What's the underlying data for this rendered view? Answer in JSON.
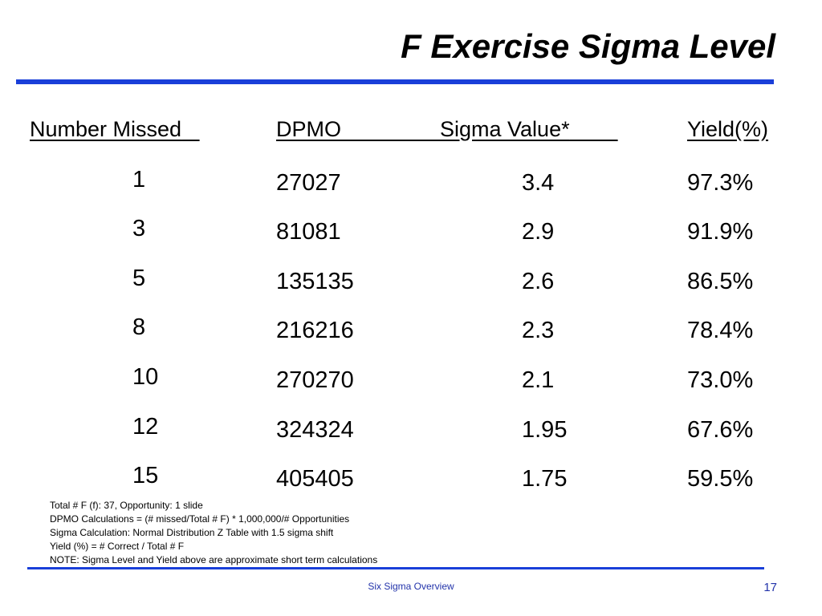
{
  "title": "F Exercise Sigma Level",
  "table": {
    "headers": {
      "number_missed": "Number Missed",
      "dpmo": "DPMO",
      "sigma_value": "Sigma Value*",
      "yield": "Yield(%)"
    },
    "rows": [
      {
        "missed": "1",
        "dpmo": "27027",
        "sigma": "3.4",
        "yield": "97.3%"
      },
      {
        "missed": "3",
        "dpmo": "81081",
        "sigma": "2.9",
        "yield": "91.9%"
      },
      {
        "missed": "5",
        "dpmo": "135135",
        "sigma": "2.6",
        "yield": "86.5%"
      },
      {
        "missed": "8",
        "dpmo": "216216",
        "sigma": "2.3",
        "yield": "78.4%"
      },
      {
        "missed": "10",
        "dpmo": "270270",
        "sigma": "2.1",
        "yield": "73.0%"
      },
      {
        "missed": "12",
        "dpmo": "324324",
        "sigma": "1.95",
        "yield": "67.6%"
      },
      {
        "missed": "15",
        "dpmo": "405405",
        "sigma": "1.75",
        "yield": "59.5%"
      }
    ]
  },
  "notes": [
    "Total # F (f):  37, Opportunity:  1 slide",
    "DPMO Calculations = (# missed/Total # F) * 1,000,000/# Opportunities",
    "Sigma Calculation:  Normal Distribution Z Table with 1.5 sigma shift",
    "Yield (%) = # Correct / Total # F",
    "NOTE:  Sigma Level and Yield above are approximate short term calculations"
  ],
  "footer": {
    "center_text": "Six Sigma Overview",
    "page_number": "17"
  },
  "colors": {
    "rule": "#1a3fd9",
    "footer_text": "#2233aa"
  }
}
